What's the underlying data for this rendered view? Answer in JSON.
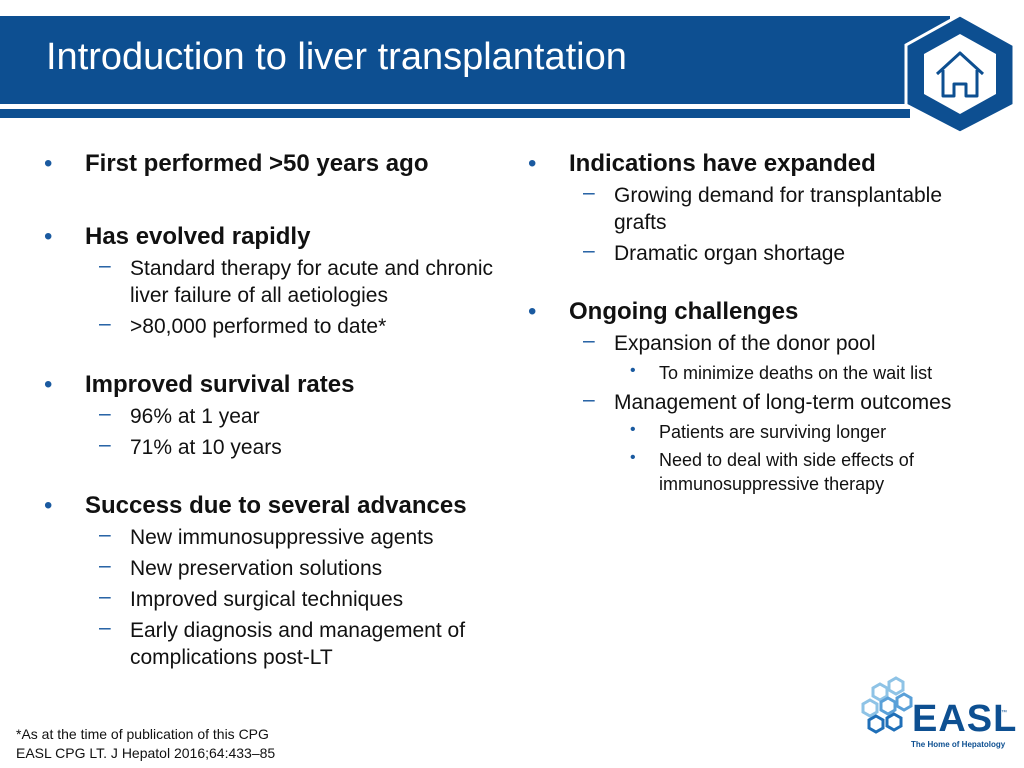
{
  "slide": {
    "title": "Introduction to liver transplantation",
    "home_icon": "home-icon"
  },
  "left_column": [
    {
      "heading": "First performed >50 years ago",
      "subs": []
    },
    {
      "heading": "Has evolved rapidly",
      "subs": [
        {
          "text": "Standard therapy for acute and chronic liver failure of all aetiologies",
          "subs": []
        },
        {
          "text": ">80,000 performed to date*",
          "subs": []
        }
      ]
    },
    {
      "heading": "Improved survival rates",
      "subs": [
        {
          "text": "96% at 1 year",
          "subs": []
        },
        {
          "text": "71% at 10 years",
          "subs": []
        }
      ]
    },
    {
      "heading": "Success due to several advances",
      "subs": [
        {
          "text": "New immunosuppressive agents",
          "subs": []
        },
        {
          "text": "New preservation solutions",
          "subs": []
        },
        {
          "text": "Improved surgical techniques",
          "subs": []
        },
        {
          "text": "Early diagnosis and management of complications post-LT",
          "subs": []
        }
      ]
    }
  ],
  "right_column": [
    {
      "heading": "Indications have expanded",
      "subs": [
        {
          "text": "Growing demand for transplantable grafts",
          "subs": []
        },
        {
          "text": "Dramatic organ shortage",
          "subs": []
        }
      ]
    },
    {
      "heading": "Ongoing challenges",
      "subs": [
        {
          "text": "Expansion of the donor pool",
          "subs": [
            "To minimize deaths on the wait list"
          ]
        },
        {
          "text": "Management of long-term outcomes",
          "subs": [
            "Patients are surviving longer",
            "Need to deal with side effects of immunosuppressive therapy"
          ]
        }
      ]
    }
  ],
  "footnote": {
    "line1": "*As at the time of publication of this CPG",
    "line2": "EASL CPG LT. J Hepatol 2016;64:433–85"
  },
  "logo": {
    "word": "EASL",
    "trademark": "™",
    "tagline": "The Home of Hepatology"
  },
  "colors": {
    "brand_blue": "#0d4f91",
    "bullet_blue": "#1a5aa0",
    "logo_light_blue": "#8ec3e6"
  }
}
